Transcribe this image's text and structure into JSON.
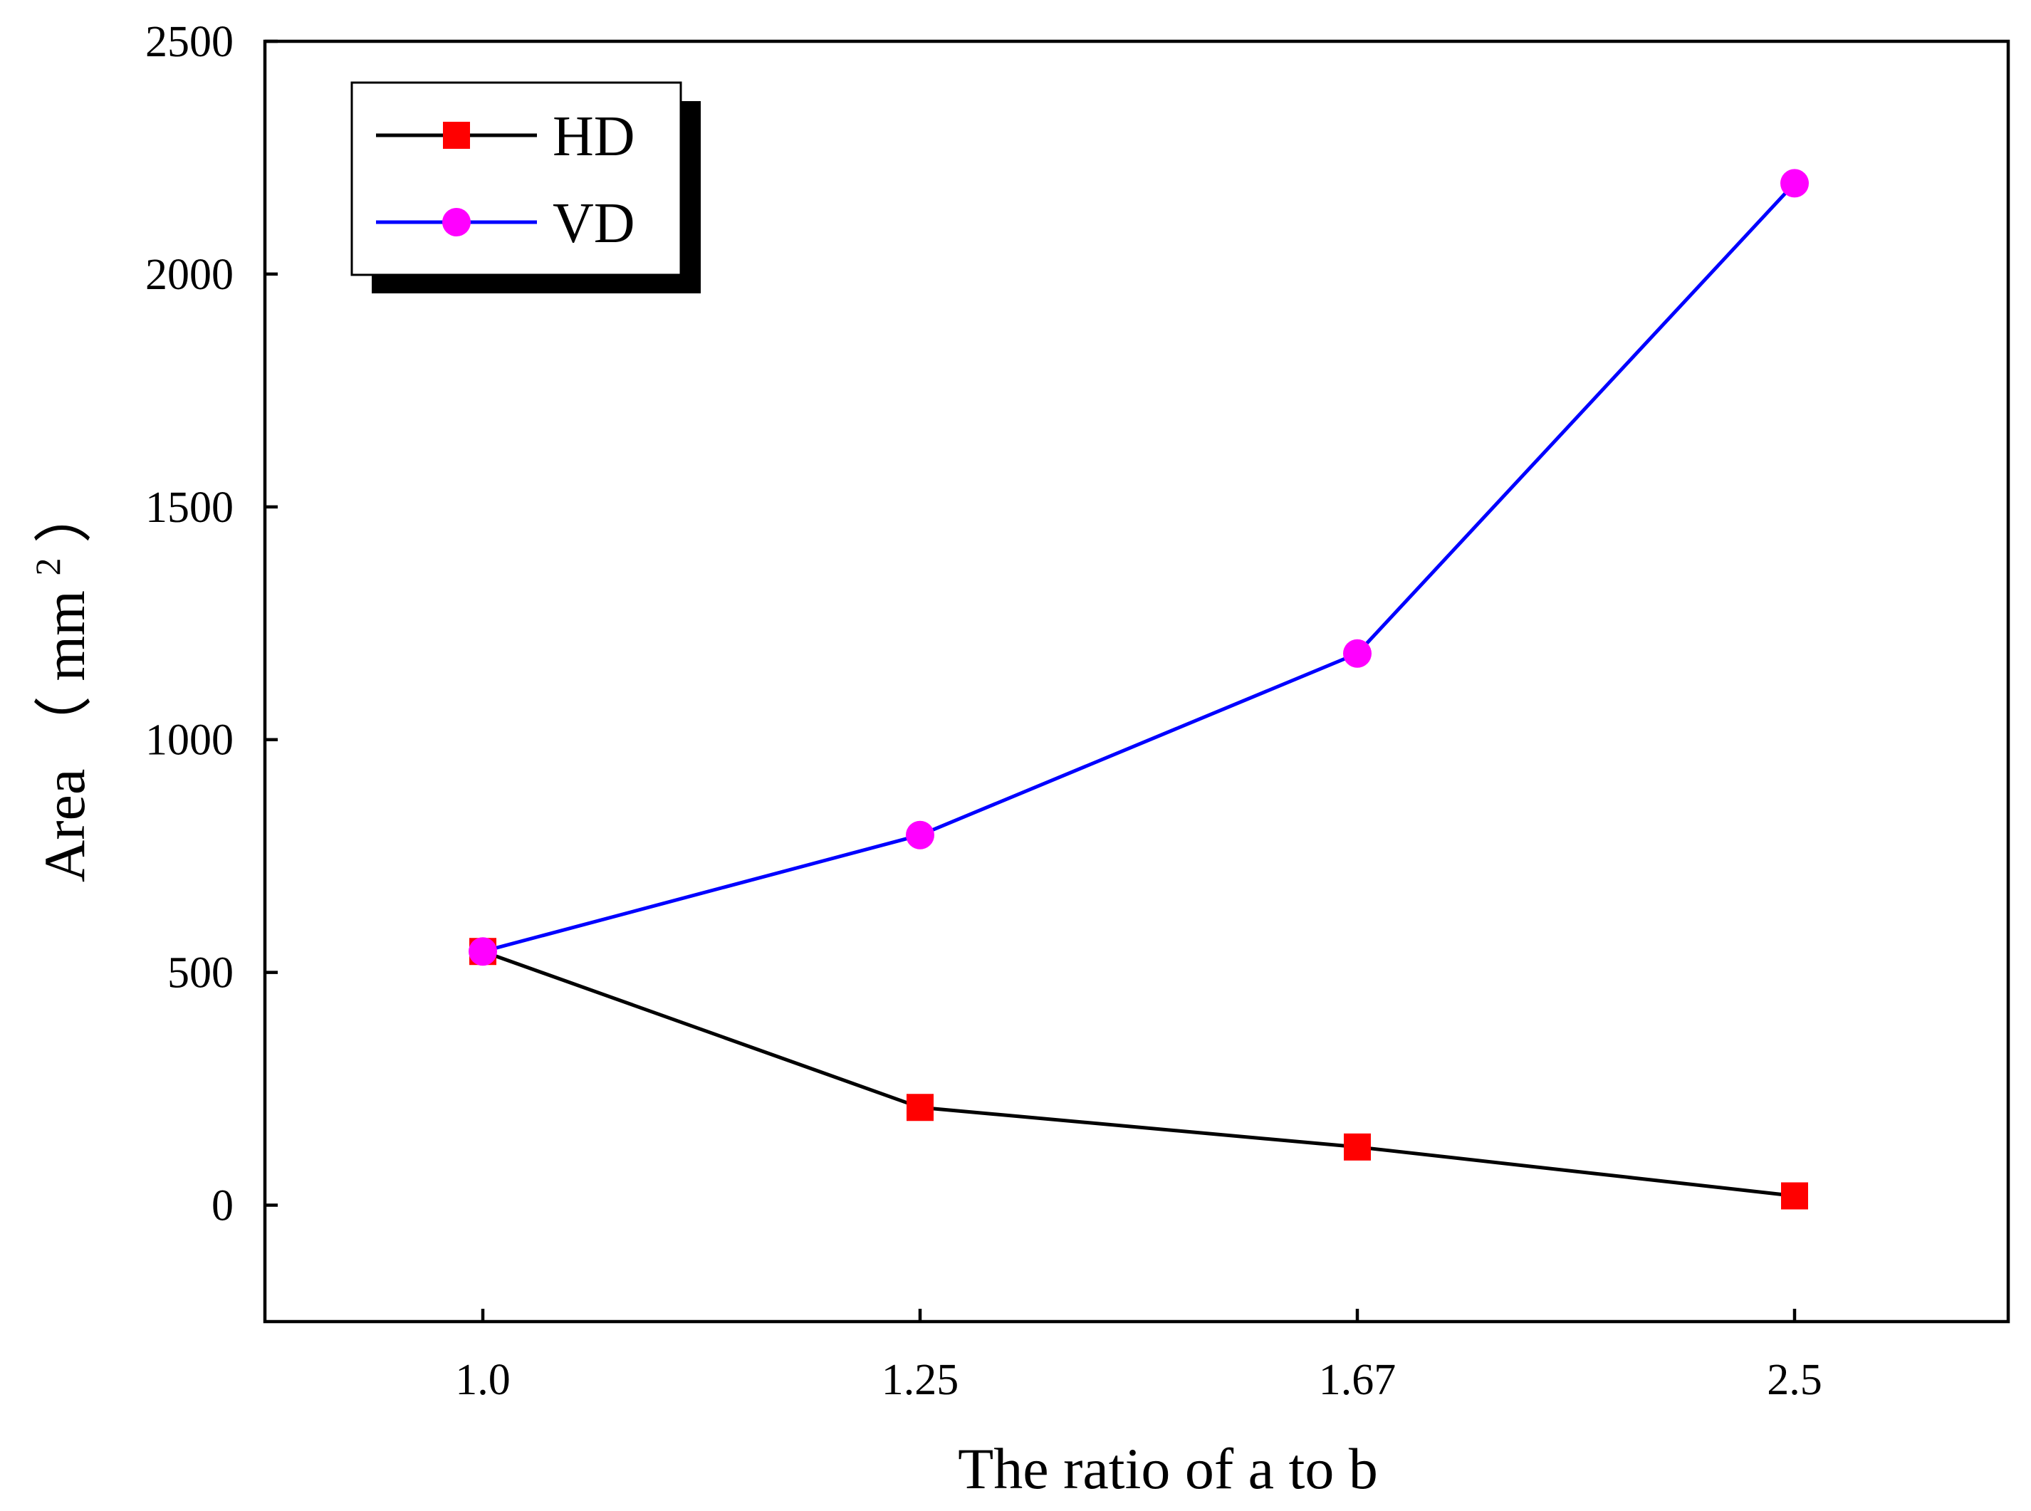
{
  "chart_data": {
    "type": "line",
    "categories": [
      "1.0",
      "1.25",
      "1.67",
      "2.5"
    ],
    "xlabel": "The ratio of a to b",
    "ylabel": {
      "text": "Area",
      "open": "（",
      "unit": "mm",
      "sup": "2",
      "close": "）"
    },
    "ylim": [
      -250,
      2500
    ],
    "yticks": [
      0,
      500,
      1000,
      1500,
      2000,
      2500
    ],
    "ytick_labels": [
      "0",
      "500",
      "1000",
      "1500",
      "2000",
      "2500"
    ],
    "grid": false,
    "legend_position": "top-left",
    "series": [
      {
        "name": "HD",
        "values": [
          545,
          210,
          125,
          20
        ],
        "line_color": "#000000",
        "marker": "square",
        "marker_color": "#ff0000"
      },
      {
        "name": "VD",
        "values": [
          545,
          795,
          1185,
          2195
        ],
        "line_color": "#0000ff",
        "marker": "circle",
        "marker_color": "#ff00ff"
      }
    ]
  }
}
